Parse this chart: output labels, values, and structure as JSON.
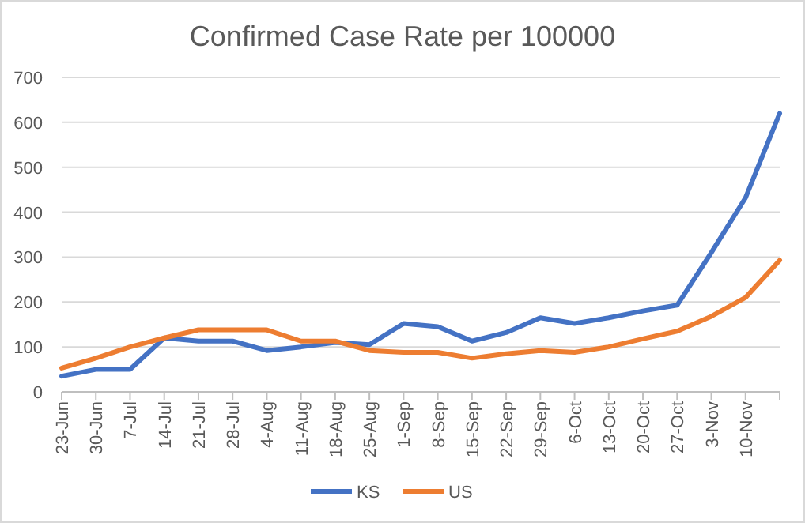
{
  "chart_data": {
    "type": "line",
    "title": "Confirmed Case Rate per 100000",
    "categories": [
      "23-Jun",
      "30-Jun",
      "7-Jul",
      "14-Jul",
      "21-Jul",
      "28-Jul",
      "4-Aug",
      "11-Aug",
      "18-Aug",
      "25-Aug",
      "1-Sep",
      "8-Sep",
      "15-Sep",
      "22-Sep",
      "29-Sep",
      "6-Oct",
      "13-Oct",
      "20-Oct",
      "27-Oct",
      "3-Nov",
      "10-Nov",
      null
    ],
    "series": [
      {
        "name": "KS",
        "color": "#4472c4",
        "values": [
          35,
          50,
          50,
          120,
          113,
          113,
          92,
          100,
          110,
          105,
          152,
          145,
          113,
          132,
          165,
          152,
          165,
          180,
          193,
          310,
          432,
          620
        ]
      },
      {
        "name": "US",
        "color": "#ed7d31",
        "values": [
          53,
          75,
          100,
          120,
          138,
          138,
          138,
          113,
          113,
          92,
          88,
          88,
          75,
          85,
          92,
          88,
          100,
          118,
          135,
          168,
          210,
          293
        ]
      }
    ],
    "ylim": [
      0,
      700
    ],
    "yticks": [
      0,
      100,
      200,
      300,
      400,
      500,
      600,
      700
    ],
    "grid": "y",
    "legend": "bottom",
    "marker": "none",
    "line_style": "solid"
  }
}
